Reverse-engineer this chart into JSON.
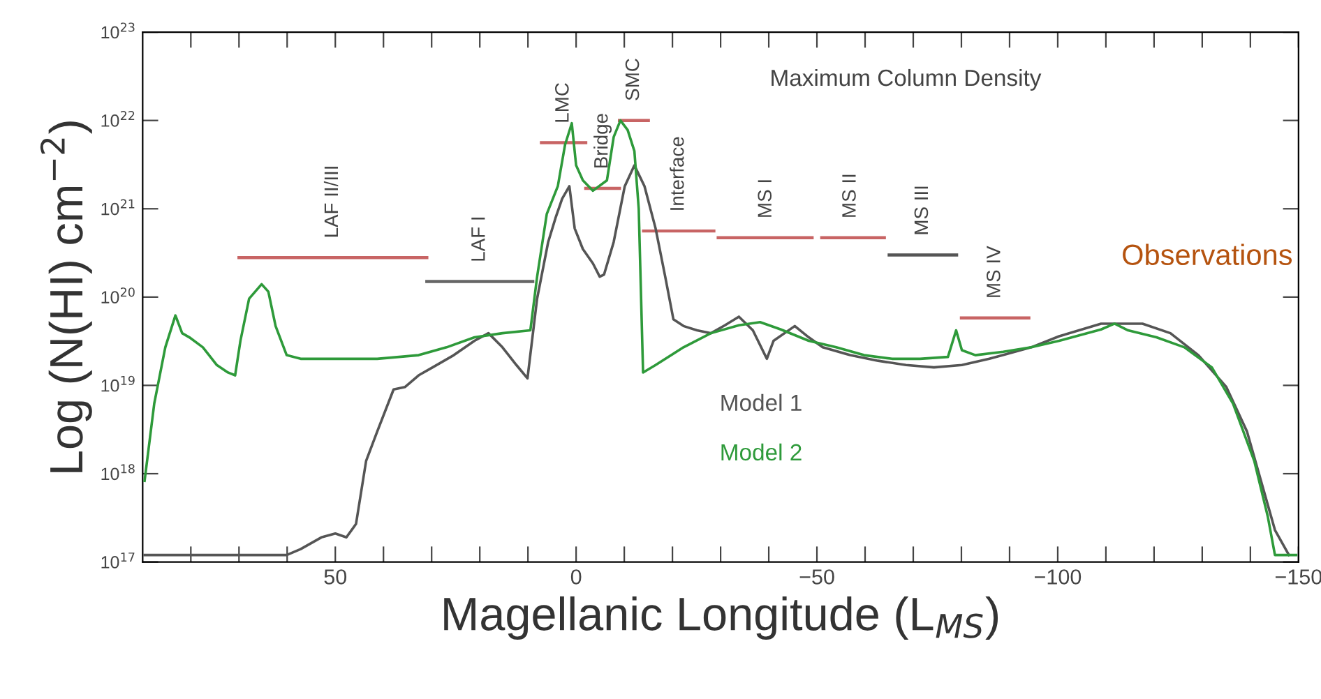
{
  "chart_data": {
    "type": "line",
    "title": "Maximum Column Density",
    "xlabel": "Magellanic Longitude (L$_{MS}$)",
    "ylabel": "Log (N(HI) cm$^{−2}$)",
    "log": "y",
    "xlim": [
      90,
      -150
    ],
    "ylim": [
      1e+17,
      1e+23
    ],
    "xticks": [
      {
        "value": 80,
        "label": null
      },
      {
        "value": 70,
        "label": null
      },
      {
        "value": 60,
        "label": null
      },
      50,
      {
        "value": 40,
        "label": null
      },
      {
        "value": 30,
        "label": null
      },
      {
        "value": 20,
        "label": null
      },
      {
        "value": 10,
        "label": null
      },
      0,
      {
        "value": -10,
        "label": null
      },
      {
        "value": -20,
        "label": null
      },
      {
        "value": -30,
        "label": null
      },
      {
        "value": -40,
        "label": null
      },
      {
        "value": -50,
        "label": "−50"
      },
      {
        "value": -60,
        "label": null
      },
      {
        "value": -70,
        "label": null
      },
      {
        "value": -80,
        "label": null
      },
      {
        "value": -90,
        "label": null
      },
      {
        "value": -100,
        "label": "−100"
      },
      {
        "value": -110,
        "label": null
      },
      {
        "value": -120,
        "label": null
      },
      {
        "value": -130,
        "label": null
      },
      {
        "value": -140,
        "label": null
      },
      {
        "value": -150,
        "label": "−150"
      }
    ],
    "yticks": [
      {
        "value": 1e+17,
        "label": "10$^{17}$"
      },
      {
        "value": 1e+18,
        "label": "10$^{18}$"
      },
      {
        "value": 1e+19,
        "label": "10$^{19}$"
      },
      {
        "value": 1e+20,
        "label": "10$^{20}$"
      },
      {
        "value": 1e+21,
        "label": "10$^{21}$"
      },
      {
        "value": 1e+22,
        "label": "10$^{22}$"
      },
      {
        "value": 1e+23,
        "label": "10$^{23}$"
      }
    ],
    "grid": false,
    "legend": "center",
    "marker": "none",
    "line_style": "solid",
    "series": [
      {
        "name": "Model 1",
        "color": "#555555",
        "x": [
          89.6,
          60.1,
          57.2,
          52.9,
          50,
          47.7,
          45.7,
          43.6,
          41.3,
          37.9,
          35.5,
          32.7,
          29.8,
          25.4,
          21.1,
          18.2,
          15.3,
          12.4,
          10.1,
          8.1,
          5.8,
          4.3,
          2.9,
          1.4,
          0.3,
          -1.4,
          -3.5,
          -4.9,
          -5.8,
          -7.8,
          -10.1,
          -12.1,
          -14.2,
          -16.5,
          -18.5,
          -20.2,
          -22.3,
          -25.1,
          -28.0,
          -30.9,
          -33.8,
          -36.7,
          -39.6,
          -41.0,
          -45.4,
          -48.3,
          -51.2,
          -56.9,
          -62.7,
          -68.5,
          -74.3,
          -80.1,
          -85.8,
          -94.5,
          -100.3,
          -109.0,
          -117.6,
          -123.4,
          -129.2,
          -135.0,
          -139.3,
          -142.2,
          -145.1,
          -148.0
        ],
        "values": [
          1.2e+17,
          1.2e+17,
          1.4e+17,
          1.9e+17,
          2.1e+17,
          1.9e+17,
          2.7e+17,
          1.4e+18,
          3e+18,
          9e+18,
          9.6e+18,
          1.3e+19,
          1.6e+19,
          2.2e+19,
          3.2e+19,
          3.9e+19,
          2.7e+19,
          1.7e+19,
          1.2e+19,
          9.6e+19,
          4.2e+20,
          7.8e+20,
          1.3e+21,
          1.8e+21,
          6e+20,
          3.5e+20,
          2.4e+20,
          1.7e+20,
          1.8e+20,
          4.2e+20,
          1.8e+21,
          3.1e+21,
          1.8e+21,
          6e+20,
          1.7e+20,
          5.6e+19,
          4.7e+19,
          4.2e+19,
          3.9e+19,
          4.8e+19,
          6e+19,
          4.2e+19,
          2e+19,
          3.2e+19,
          4.7e+19,
          3.5e+19,
          2.7e+19,
          2.2e+19,
          1.9e+19,
          1.7e+19,
          1.6e+19,
          1.7e+19,
          2e+19,
          2.7e+19,
          3.6e+19,
          5e+19,
          5e+19,
          3.9e+19,
          2.2e+19,
          9.6e+18,
          3e+18,
          8.3e+17,
          2.3e+17,
          1.2e+17
        ]
      },
      {
        "name": "Model 2",
        "color": "#2e9a3a",
        "x": [
          89.6,
          87.6,
          85.3,
          83.2,
          81.8,
          80.3,
          77.5,
          74.6,
          72.3,
          70.8,
          69.7,
          67.9,
          65.3,
          63.9,
          62.4,
          60.1,
          57.2,
          50,
          41.3,
          32.7,
          26.9,
          21.1,
          15.3,
          9.5,
          8.1,
          6.1,
          3.8,
          2.3,
          0.9,
          0,
          -1.4,
          -3.5,
          -6.4,
          -7.8,
          -9.2,
          -10.7,
          -12.1,
          -13.0,
          -13.9,
          -16.5,
          -22.3,
          -28.0,
          -33.8,
          -38.2,
          -42.5,
          -48.3,
          -54.0,
          -59.8,
          -65.6,
          -71.4,
          -77.2,
          -78.9,
          -80.1,
          -82.9,
          -88.7,
          -94.5,
          -100.3,
          -109.0,
          -111.8,
          -114.6,
          -120.5,
          -126.3,
          -132.0,
          -136.4,
          -140.8,
          -143.6,
          -145.1,
          -149.5
        ],
        "values": [
          8.3e+17,
          6.2e+18,
          2.7e+19,
          6.2e+19,
          3.9e+19,
          3.5e+19,
          2.7e+19,
          1.7e+19,
          1.4e+19,
          1.3e+19,
          3.2e+19,
          9.6e+19,
          1.4e+20,
          1.15e+20,
          4.7e+19,
          2.2e+19,
          2e+19,
          2e+19,
          2e+19,
          2.2e+19,
          2.7e+19,
          3.5e+19,
          3.9e+19,
          4.2e+19,
          1.7e+20,
          8.7e+20,
          1.8e+21,
          5.3e+21,
          9.3e+21,
          3.1e+21,
          2.1e+21,
          1.6e+21,
          2.1e+21,
          6.5e+21,
          1e+22,
          7.8e+21,
          4.5e+21,
          1e+21,
          1.4e+19,
          1.7e+19,
          2.7e+19,
          3.9e+19,
          4.8e+19,
          5.2e+19,
          4.3e+19,
          3.2e+19,
          2.7e+19,
          2.2e+19,
          2e+19,
          2e+19,
          2.1e+19,
          4.2e+19,
          2.5e+19,
          2.2e+19,
          2.4e+19,
          2.7e+19,
          3.2e+19,
          4.3e+19,
          5e+19,
          4.2e+19,
          3.5e+19,
          2.7e+19,
          1.6e+19,
          6.2e+18,
          1.4e+18,
          3.3e+17,
          1.2e+17,
          1.2e+17
        ]
      },
      {
        "color": "#c86464",
        "x": [
          70,
          31
        ],
        "values": [
          2.8e+20,
          2.8e+20
        ]
      },
      {
        "color": "#666666",
        "x": [
          31,
          9
        ],
        "values": [
          1.5e+20,
          1.5e+20
        ]
      },
      {
        "color": "#c86464",
        "x": [
          7.2,
          -2
        ],
        "values": [
          5.6e+21,
          5.6e+21
        ]
      },
      {
        "color": "#c86464",
        "x": [
          -2,
          -9
        ],
        "values": [
          1.7e+21,
          1.7e+21
        ]
      },
      {
        "color": "#c86464",
        "x": [
          -9,
          -15
        ],
        "values": [
          1e+22,
          1e+22
        ]
      },
      {
        "color": "#c86464",
        "x": [
          -14,
          -28.6
        ],
        "values": [
          5.6e+20,
          5.6e+20
        ]
      },
      {
        "color": "#c86464",
        "x": [
          -29.5,
          -49
        ],
        "values": [
          4.7e+20,
          4.7e+20
        ]
      },
      {
        "color": "#c86464",
        "x": [
          -51,
          -64
        ],
        "values": [
          4.7e+20,
          4.7e+20
        ]
      },
      {
        "color": "#555555",
        "x": [
          -65,
          -79
        ],
        "values": [
          3e+20,
          3e+20
        ]
      },
      {
        "color": "#c86464",
        "x": [
          -80,
          -94
        ],
        "values": [
          5.8e+19,
          5.8e+19
        ]
      }
    ],
    "annotations": [
      {
        "text": "LAF II/III",
        "x": 50.5,
        "y": 2.8e+20
      },
      {
        "text": "LAF I",
        "x": 20,
        "y": 1.5e+20
      },
      {
        "text": "LMC",
        "x": 2.6,
        "y": 5.6e+21
      },
      {
        "text": "Bridge",
        "x": -5.5,
        "y": 1.7e+21
      },
      {
        "text": "SMC",
        "x": -12,
        "y": 1e+22
      },
      {
        "text": "Interface",
        "x": -21.3,
        "y": 5.6e+20
      },
      {
        "text": "MS I",
        "x": -39.5,
        "y": 4.7e+20
      },
      {
        "text": "MS II",
        "x": -57,
        "y": 4.7e+20
      },
      {
        "text": "MS III",
        "x": -72,
        "y": 3e+20
      },
      {
        "text": "MS IV",
        "x": -87,
        "y": 5.8e+19
      },
      "Observations"
    ]
  }
}
